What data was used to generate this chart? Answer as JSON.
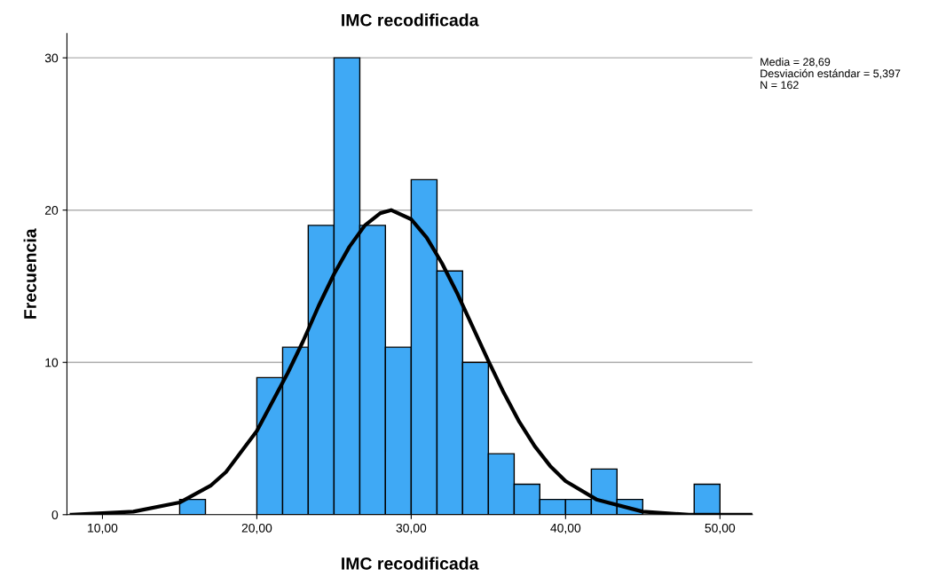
{
  "chart_data": {
    "type": "histogram",
    "title": "IMC recodificada",
    "xlabel": "IMC recodificada",
    "ylabel": "Frecuencia",
    "bins": [
      15,
      16.67,
      18.33,
      20,
      21.67,
      23.33,
      25,
      26.67,
      28.33,
      30,
      31.67,
      33.33,
      35,
      36.67,
      38.33,
      40,
      41.67,
      43.33,
      45,
      46.67,
      48.33,
      50
    ],
    "values": [
      1,
      0,
      0,
      9,
      11,
      19,
      30,
      19,
      11,
      22,
      16,
      10,
      4,
      2,
      1,
      1,
      3,
      1,
      0,
      0,
      2
    ],
    "color": "#3fa9f5",
    "series": [
      {
        "type": "line",
        "color": "#000000",
        "x": [
          8,
          12,
          15,
          17,
          18,
          20,
          22,
          23,
          24,
          25,
          26,
          27,
          28,
          28.7,
          30,
          31,
          32,
          33,
          34,
          35,
          36,
          37,
          38,
          39,
          40,
          42,
          45,
          48,
          52
        ],
        "values": [
          0,
          0.2,
          0.8,
          1.9,
          2.8,
          5.5,
          9.3,
          11.4,
          13.7,
          15.8,
          17.6,
          19,
          19.8,
          20,
          19.4,
          18.2,
          16.5,
          14.5,
          12.3,
          10.1,
          8,
          6.1,
          4.5,
          3.2,
          2.2,
          1,
          0.2,
          0,
          0
        ]
      }
    ],
    "xlim": [
      7.7,
      52.1
    ],
    "ylim": [
      0,
      31.6
    ],
    "xticks": [
      {
        "value": 10,
        "label": "10,00"
      },
      {
        "value": 20,
        "label": "20,00"
      },
      {
        "value": 30,
        "label": "30,00"
      },
      {
        "value": 40,
        "label": "40,00"
      },
      {
        "value": 50,
        "label": "50,00"
      }
    ],
    "yticks": [
      0,
      10,
      20,
      30
    ],
    "grid": "y",
    "annotations": [
      "Media = 28,69",
      "Desviación estándar = 5,397",
      "N = 162"
    ]
  }
}
